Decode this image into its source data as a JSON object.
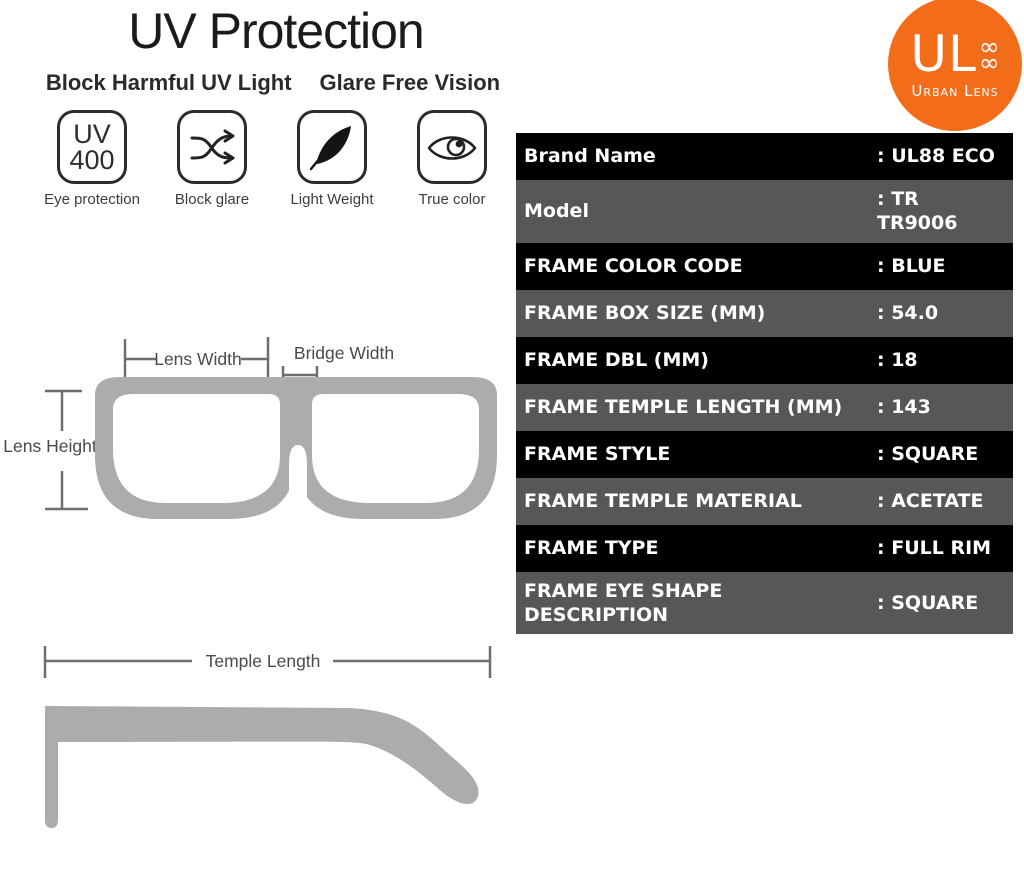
{
  "header": {
    "title": "UV Protection",
    "subtitle_left": "Block Harmful UV Light",
    "subtitle_right": "Glare Free Vision"
  },
  "features": [
    {
      "icon": "uv400-icon",
      "uv_line1": "UV",
      "uv_line2": "400",
      "label": "Eye protection"
    },
    {
      "icon": "block-glare-icon",
      "label": "Block glare"
    },
    {
      "icon": "feather-icon",
      "label": "Light Weight"
    },
    {
      "icon": "eye-icon",
      "label": "True color"
    }
  ],
  "logo": {
    "initials": "UL",
    "infinity_top": "∞",
    "infinity_bottom": "∞",
    "name": "Urban Lens",
    "color": "#F26C1A"
  },
  "specs": {
    "rows": [
      {
        "label": "Brand Name",
        "value": ": UL88 ECO"
      },
      {
        "label": "Model",
        "value": ": TR\nTR9006"
      },
      {
        "label": "FRAME COLOR CODE",
        "value": ": BLUE"
      },
      {
        "label": "FRAME BOX SIZE (MM)",
        "value": ": 54.0"
      },
      {
        "label": "FRAME DBL (MM)",
        "value": ": 18"
      },
      {
        "label": "FRAME TEMPLE LENGTH (MM)",
        "value": ": 143"
      },
      {
        "label": "FRAME STYLE",
        "value": ": SQUARE"
      },
      {
        "label": "FRAME TEMPLE MATERIAL",
        "value": ": ACETATE"
      },
      {
        "label": "FRAME TYPE",
        "value": ": FULL RIM"
      },
      {
        "label": "FRAME EYE SHAPE\nDESCRIPTION",
        "value": ": SQUARE"
      }
    ]
  },
  "diagram": {
    "lens_width": "Lens Width",
    "bridge_width": "Bridge Width",
    "lens_height": "Lens Height",
    "temple_length": "Temple Length"
  },
  "colors": {
    "row_dark": "#000000",
    "row_gray": "#575757",
    "logo_orange": "#F26C1A",
    "frame_gray": "#ACACAC",
    "measure_line": "#6E6E6E"
  }
}
